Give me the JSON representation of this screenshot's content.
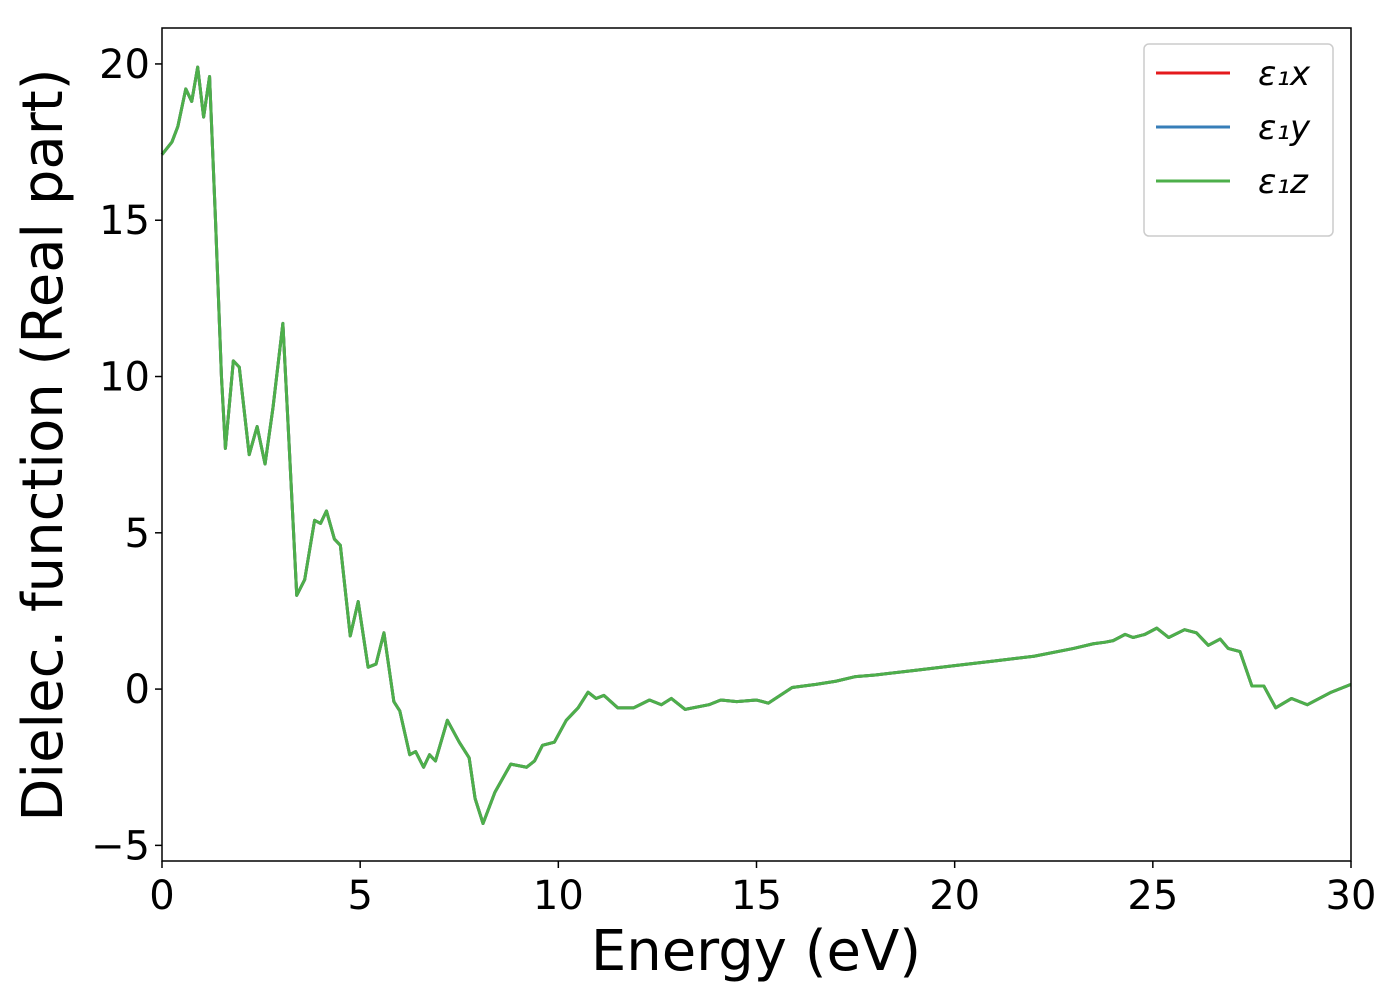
{
  "chart_data": {
    "type": "line",
    "xlabel": "Energy (eV)",
    "ylabel": "Dielec. function (Real part)",
    "x": [
      0,
      0.25,
      0.4,
      0.6,
      0.75,
      0.9,
      1.05,
      1.2,
      1.35,
      1.5,
      1.6,
      1.8,
      1.95,
      2.2,
      2.4,
      2.6,
      2.8,
      3.05,
      3.2,
      3.4,
      3.6,
      3.85,
      4.0,
      4.15,
      4.35,
      4.5,
      4.75,
      4.95,
      5.2,
      5.4,
      5.6,
      5.85,
      6.0,
      6.25,
      6.4,
      6.6,
      6.75,
      6.9,
      7.2,
      7.5,
      7.75,
      7.9,
      8.1,
      8.4,
      8.8,
      9.2,
      9.4,
      9.6,
      9.9,
      10.2,
      10.5,
      10.75,
      10.95,
      11.15,
      11.5,
      11.9,
      12.3,
      12.6,
      12.85,
      13.2,
      13.8,
      14.1,
      14.5,
      15.0,
      15.3,
      15.9,
      16.5,
      17.0,
      17.5,
      18.0,
      19.0,
      20.0,
      21.0,
      22.0,
      23.0,
      23.5,
      23.8,
      24.0,
      24.3,
      24.5,
      24.8,
      25.1,
      25.4,
      25.8,
      26.1,
      26.4,
      26.7,
      26.9,
      27.2,
      27.5,
      27.8,
      28.1,
      28.5,
      28.9,
      29.5,
      30
    ],
    "series": [
      {
        "name": "ε₁x",
        "color": "#e41a1c",
        "values": [
          17.1,
          17.5,
          18.0,
          19.2,
          18.8,
          19.9,
          18.3,
          19.6,
          15,
          10,
          7.7,
          10.5,
          10.3,
          7.5,
          8.4,
          7.2,
          9,
          11.7,
          8,
          3,
          3.5,
          5.4,
          5.3,
          5.7,
          4.8,
          4.6,
          1.7,
          2.8,
          0.7,
          0.8,
          1.8,
          -0.4,
          -0.7,
          -2.1,
          -2.0,
          -2.5,
          -2.1,
          -2.3,
          -1.0,
          -1.7,
          -2.2,
          -3.5,
          -4.3,
          -3.3,
          -2.4,
          -2.5,
          -2.3,
          -1.8,
          -1.7,
          -1.0,
          -0.6,
          -0.1,
          -0.3,
          -0.2,
          -0.6,
          -0.6,
          -0.35,
          -0.5,
          -0.3,
          -0.65,
          -0.5,
          -0.35,
          -0.4,
          -0.35,
          -0.45,
          0.05,
          0.15,
          0.25,
          0.4,
          0.45,
          0.6,
          0.75,
          0.9,
          1.05,
          1.3,
          1.45,
          1.5,
          1.55,
          1.75,
          1.65,
          1.75,
          1.95,
          1.65,
          1.9,
          1.8,
          1.4,
          1.6,
          1.3,
          1.2,
          0.1,
          0.1,
          -0.6,
          -0.3,
          -0.5,
          -0.1,
          0.15
        ]
      },
      {
        "name": "ε₁y",
        "color": "#377eb8",
        "values": [
          17.1,
          17.5,
          18.0,
          19.2,
          18.8,
          19.9,
          18.3,
          19.6,
          15,
          10,
          7.7,
          10.5,
          10.3,
          7.5,
          8.4,
          7.2,
          9,
          11.7,
          8,
          3,
          3.5,
          5.4,
          5.3,
          5.7,
          4.8,
          4.6,
          1.7,
          2.8,
          0.7,
          0.8,
          1.8,
          -0.4,
          -0.7,
          -2.1,
          -2.0,
          -2.5,
          -2.1,
          -2.3,
          -1.0,
          -1.7,
          -2.2,
          -3.5,
          -4.3,
          -3.3,
          -2.4,
          -2.5,
          -2.3,
          -1.8,
          -1.7,
          -1.0,
          -0.6,
          -0.1,
          -0.3,
          -0.2,
          -0.6,
          -0.6,
          -0.35,
          -0.5,
          -0.3,
          -0.65,
          -0.5,
          -0.35,
          -0.4,
          -0.35,
          -0.45,
          0.05,
          0.15,
          0.25,
          0.4,
          0.45,
          0.6,
          0.75,
          0.9,
          1.05,
          1.3,
          1.45,
          1.5,
          1.55,
          1.75,
          1.65,
          1.75,
          1.95,
          1.65,
          1.9,
          1.8,
          1.4,
          1.6,
          1.3,
          1.2,
          0.1,
          0.1,
          -0.6,
          -0.3,
          -0.5,
          -0.1,
          0.15
        ]
      },
      {
        "name": "ε₁z",
        "color": "#4daf4a",
        "values": [
          17.1,
          17.5,
          18.0,
          19.2,
          18.8,
          19.9,
          18.3,
          19.6,
          15,
          10,
          7.7,
          10.5,
          10.3,
          7.5,
          8.4,
          7.2,
          9,
          11.7,
          8,
          3,
          3.5,
          5.4,
          5.3,
          5.7,
          4.8,
          4.6,
          1.7,
          2.8,
          0.7,
          0.8,
          1.8,
          -0.4,
          -0.7,
          -2.1,
          -2.0,
          -2.5,
          -2.1,
          -2.3,
          -1.0,
          -1.7,
          -2.2,
          -3.5,
          -4.3,
          -3.3,
          -2.4,
          -2.5,
          -2.3,
          -1.8,
          -1.7,
          -1.0,
          -0.6,
          -0.1,
          -0.3,
          -0.2,
          -0.6,
          -0.6,
          -0.35,
          -0.5,
          -0.3,
          -0.65,
          -0.5,
          -0.35,
          -0.4,
          -0.35,
          -0.45,
          0.05,
          0.15,
          0.25,
          0.4,
          0.45,
          0.6,
          0.75,
          0.9,
          1.05,
          1.3,
          1.45,
          1.5,
          1.55,
          1.75,
          1.65,
          1.75,
          1.95,
          1.65,
          1.9,
          1.8,
          1.4,
          1.6,
          1.3,
          1.2,
          0.1,
          0.1,
          -0.6,
          -0.3,
          -0.5,
          -0.1,
          0.15
        ]
      }
    ],
    "xlim": [
      0,
      30
    ],
    "xticks": [
      0,
      5,
      10,
      15,
      20,
      25,
      30
    ],
    "ylim": [
      -5.5,
      21.15
    ],
    "yticks": [
      {
        "value": -5,
        "label": "−5"
      },
      0,
      5,
      10,
      15,
      20
    ],
    "grid": false,
    "legend": "upper right"
  }
}
